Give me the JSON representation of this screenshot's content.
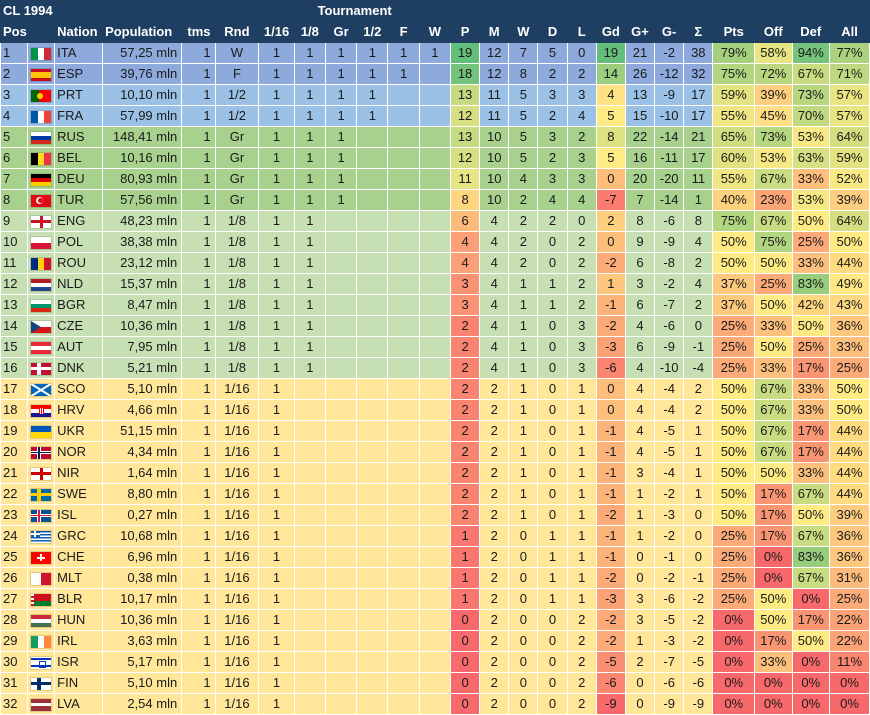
{
  "title": "CL 1994",
  "group_header": "Tournament",
  "columns": [
    "Pos",
    "",
    "Nation",
    "Population",
    "tms",
    "Rnd",
    "1/16",
    "1/8",
    "Gr",
    "1/2",
    "F",
    "W",
    "P",
    "M",
    "W",
    "D",
    "L",
    "Gd",
    "G+",
    "G-",
    "Σ",
    "Pts",
    "Off",
    "Def",
    "All"
  ],
  "row_colors": {
    "W": "#8ea9db",
    "F": "#8ea9db",
    "1/2": "#9bc2e6",
    "Gr": "#a9d18e",
    "1/8": "#c6e0b4",
    "1/16": "#ffe699"
  },
  "rows": [
    {
      "pos": "1",
      "nation": "ITA",
      "flag": "italy-flag",
      "population": "57,25 mln",
      "tms": "1",
      "rnd": "W",
      "r16": "1",
      "r8": "1",
      "gr": "1",
      "sf": "1",
      "f": "1",
      "w": "1",
      "p": "19",
      "m": "12",
      "win": "7",
      "d": "5",
      "l": "0",
      "gd": "19",
      "gp": "21",
      "gm": "-2",
      "sum": "38",
      "pts": "79%",
      "off": "58%",
      "def": "94%",
      "all": "77%"
    },
    {
      "pos": "2",
      "nation": "ESP",
      "flag": "spain-flag",
      "population": "39,76 mln",
      "tms": "1",
      "rnd": "F",
      "r16": "1",
      "r8": "1",
      "gr": "1",
      "sf": "1",
      "f": "1",
      "w": "",
      "p": "18",
      "m": "12",
      "win": "8",
      "d": "2",
      "l": "2",
      "gd": "14",
      "gp": "26",
      "gm": "-12",
      "sum": "32",
      "pts": "75%",
      "off": "72%",
      "def": "67%",
      "all": "71%"
    },
    {
      "pos": "3",
      "nation": "PRT",
      "flag": "portugal-flag",
      "population": "10,10 mln",
      "tms": "1",
      "rnd": "1/2",
      "r16": "1",
      "r8": "1",
      "gr": "1",
      "sf": "1",
      "f": "",
      "w": "",
      "p": "13",
      "m": "11",
      "win": "5",
      "d": "3",
      "l": "3",
      "gd": "4",
      "gp": "13",
      "gm": "-9",
      "sum": "17",
      "pts": "59%",
      "off": "39%",
      "def": "73%",
      "all": "57%"
    },
    {
      "pos": "4",
      "nation": "FRA",
      "flag": "france-flag",
      "population": "57,99 mln",
      "tms": "1",
      "rnd": "1/2",
      "r16": "1",
      "r8": "1",
      "gr": "1",
      "sf": "1",
      "f": "",
      "w": "",
      "p": "12",
      "m": "11",
      "win": "5",
      "d": "2",
      "l": "4",
      "gd": "5",
      "gp": "15",
      "gm": "-10",
      "sum": "17",
      "pts": "55%",
      "off": "45%",
      "def": "70%",
      "all": "57%"
    },
    {
      "pos": "5",
      "nation": "RUS",
      "flag": "russia-flag",
      "population": "148,41 mln",
      "tms": "1",
      "rnd": "Gr",
      "r16": "1",
      "r8": "1",
      "gr": "1",
      "sf": "",
      "f": "",
      "w": "",
      "p": "13",
      "m": "10",
      "win": "5",
      "d": "3",
      "l": "2",
      "gd": "8",
      "gp": "22",
      "gm": "-14",
      "sum": "21",
      "pts": "65%",
      "off": "73%",
      "def": "53%",
      "all": "64%"
    },
    {
      "pos": "6",
      "nation": "BEL",
      "flag": "belgium-flag",
      "population": "10,16 mln",
      "tms": "1",
      "rnd": "Gr",
      "r16": "1",
      "r8": "1",
      "gr": "1",
      "sf": "",
      "f": "",
      "w": "",
      "p": "12",
      "m": "10",
      "win": "5",
      "d": "2",
      "l": "3",
      "gd": "5",
      "gp": "16",
      "gm": "-11",
      "sum": "17",
      "pts": "60%",
      "off": "53%",
      "def": "63%",
      "all": "59%"
    },
    {
      "pos": "7",
      "nation": "DEU",
      "flag": "germany-flag",
      "population": "80,93 mln",
      "tms": "1",
      "rnd": "Gr",
      "r16": "1",
      "r8": "1",
      "gr": "1",
      "sf": "",
      "f": "",
      "w": "",
      "p": "11",
      "m": "10",
      "win": "4",
      "d": "3",
      "l": "3",
      "gd": "0",
      "gp": "20",
      "gm": "-20",
      "sum": "11",
      "pts": "55%",
      "off": "67%",
      "def": "33%",
      "all": "52%"
    },
    {
      "pos": "8",
      "nation": "TUR",
      "flag": "turkey-flag",
      "population": "57,56 mln",
      "tms": "1",
      "rnd": "Gr",
      "r16": "1",
      "r8": "1",
      "gr": "1",
      "sf": "",
      "f": "",
      "w": "",
      "p": "8",
      "m": "10",
      "win": "2",
      "d": "4",
      "l": "4",
      "gd": "-7",
      "gp": "7",
      "gm": "-14",
      "sum": "1",
      "pts": "40%",
      "off": "23%",
      "def": "53%",
      "all": "39%"
    },
    {
      "pos": "9",
      "nation": "ENG",
      "flag": "england-flag",
      "population": "48,23 mln",
      "tms": "1",
      "rnd": "1/8",
      "r16": "1",
      "r8": "1",
      "gr": "",
      "sf": "",
      "f": "",
      "w": "",
      "p": "6",
      "m": "4",
      "win": "2",
      "d": "2",
      "l": "0",
      "gd": "2",
      "gp": "8",
      "gm": "-6",
      "sum": "8",
      "pts": "75%",
      "off": "67%",
      "def": "50%",
      "all": "64%"
    },
    {
      "pos": "10",
      "nation": "POL",
      "flag": "poland-flag",
      "population": "38,38 mln",
      "tms": "1",
      "rnd": "1/8",
      "r16": "1",
      "r8": "1",
      "gr": "",
      "sf": "",
      "f": "",
      "w": "",
      "p": "4",
      "m": "4",
      "win": "2",
      "d": "0",
      "l": "2",
      "gd": "0",
      "gp": "9",
      "gm": "-9",
      "sum": "4",
      "pts": "50%",
      "off": "75%",
      "def": "25%",
      "all": "50%"
    },
    {
      "pos": "11",
      "nation": "ROU",
      "flag": "romania-flag",
      "population": "23,12 mln",
      "tms": "1",
      "rnd": "1/8",
      "r16": "1",
      "r8": "1",
      "gr": "",
      "sf": "",
      "f": "",
      "w": "",
      "p": "4",
      "m": "4",
      "win": "2",
      "d": "0",
      "l": "2",
      "gd": "-2",
      "gp": "6",
      "gm": "-8",
      "sum": "2",
      "pts": "50%",
      "off": "50%",
      "def": "33%",
      "all": "44%"
    },
    {
      "pos": "12",
      "nation": "NLD",
      "flag": "netherlands-flag",
      "population": "15,37 mln",
      "tms": "1",
      "rnd": "1/8",
      "r16": "1",
      "r8": "1",
      "gr": "",
      "sf": "",
      "f": "",
      "w": "",
      "p": "3",
      "m": "4",
      "win": "1",
      "d": "1",
      "l": "2",
      "gd": "1",
      "gp": "3",
      "gm": "-2",
      "sum": "4",
      "pts": "37%",
      "off": "25%",
      "def": "83%",
      "all": "49%"
    },
    {
      "pos": "13",
      "nation": "BGR",
      "flag": "bulgaria-flag",
      "population": "8,47 mln",
      "tms": "1",
      "rnd": "1/8",
      "r16": "1",
      "r8": "1",
      "gr": "",
      "sf": "",
      "f": "",
      "w": "",
      "p": "3",
      "m": "4",
      "win": "1",
      "d": "1",
      "l": "2",
      "gd": "-1",
      "gp": "6",
      "gm": "-7",
      "sum": "2",
      "pts": "37%",
      "off": "50%",
      "def": "42%",
      "all": "43%"
    },
    {
      "pos": "14",
      "nation": "CZE",
      "flag": "czech-flag",
      "population": "10,36 mln",
      "tms": "1",
      "rnd": "1/8",
      "r16": "1",
      "r8": "1",
      "gr": "",
      "sf": "",
      "f": "",
      "w": "",
      "p": "2",
      "m": "4",
      "win": "1",
      "d": "0",
      "l": "3",
      "gd": "-2",
      "gp": "4",
      "gm": "-6",
      "sum": "0",
      "pts": "25%",
      "off": "33%",
      "def": "50%",
      "all": "36%"
    },
    {
      "pos": "15",
      "nation": "AUT",
      "flag": "austria-flag",
      "population": "7,95 mln",
      "tms": "1",
      "rnd": "1/8",
      "r16": "1",
      "r8": "1",
      "gr": "",
      "sf": "",
      "f": "",
      "w": "",
      "p": "2",
      "m": "4",
      "win": "1",
      "d": "0",
      "l": "3",
      "gd": "-3",
      "gp": "6",
      "gm": "-9",
      "sum": "-1",
      "pts": "25%",
      "off": "50%",
      "def": "25%",
      "all": "33%"
    },
    {
      "pos": "16",
      "nation": "DNK",
      "flag": "denmark-flag",
      "population": "5,21 mln",
      "tms": "1",
      "rnd": "1/8",
      "r16": "1",
      "r8": "1",
      "gr": "",
      "sf": "",
      "f": "",
      "w": "",
      "p": "2",
      "m": "4",
      "win": "1",
      "d": "0",
      "l": "3",
      "gd": "-6",
      "gp": "4",
      "gm": "-10",
      "sum": "-4",
      "pts": "25%",
      "off": "33%",
      "def": "17%",
      "all": "25%"
    },
    {
      "pos": "17",
      "nation": "SCO",
      "flag": "scotland-flag",
      "population": "5,10 mln",
      "tms": "1",
      "rnd": "1/16",
      "r16": "1",
      "r8": "",
      "gr": "",
      "sf": "",
      "f": "",
      "w": "",
      "p": "2",
      "m": "2",
      "win": "1",
      "d": "0",
      "l": "1",
      "gd": "0",
      "gp": "4",
      "gm": "-4",
      "sum": "2",
      "pts": "50%",
      "off": "67%",
      "def": "33%",
      "all": "50%"
    },
    {
      "pos": "18",
      "nation": "HRV",
      "flag": "croatia-flag",
      "population": "4,66 mln",
      "tms": "1",
      "rnd": "1/16",
      "r16": "1",
      "r8": "",
      "gr": "",
      "sf": "",
      "f": "",
      "w": "",
      "p": "2",
      "m": "2",
      "win": "1",
      "d": "0",
      "l": "1",
      "gd": "0",
      "gp": "4",
      "gm": "-4",
      "sum": "2",
      "pts": "50%",
      "off": "67%",
      "def": "33%",
      "all": "50%"
    },
    {
      "pos": "19",
      "nation": "UKR",
      "flag": "ukraine-flag",
      "population": "51,15 mln",
      "tms": "1",
      "rnd": "1/16",
      "r16": "1",
      "r8": "",
      "gr": "",
      "sf": "",
      "f": "",
      "w": "",
      "p": "2",
      "m": "2",
      "win": "1",
      "d": "0",
      "l": "1",
      "gd": "-1",
      "gp": "4",
      "gm": "-5",
      "sum": "1",
      "pts": "50%",
      "off": "67%",
      "def": "17%",
      "all": "44%"
    },
    {
      "pos": "20",
      "nation": "NOR",
      "flag": "norway-flag",
      "population": "4,34 mln",
      "tms": "1",
      "rnd": "1/16",
      "r16": "1",
      "r8": "",
      "gr": "",
      "sf": "",
      "f": "",
      "w": "",
      "p": "2",
      "m": "2",
      "win": "1",
      "d": "0",
      "l": "1",
      "gd": "-1",
      "gp": "4",
      "gm": "-5",
      "sum": "1",
      "pts": "50%",
      "off": "67%",
      "def": "17%",
      "all": "44%"
    },
    {
      "pos": "21",
      "nation": "NIR",
      "flag": "northern-ireland-flag",
      "population": "1,64 mln",
      "tms": "1",
      "rnd": "1/16",
      "r16": "1",
      "r8": "",
      "gr": "",
      "sf": "",
      "f": "",
      "w": "",
      "p": "2",
      "m": "2",
      "win": "1",
      "d": "0",
      "l": "1",
      "gd": "-1",
      "gp": "3",
      "gm": "-4",
      "sum": "1",
      "pts": "50%",
      "off": "50%",
      "def": "33%",
      "all": "44%"
    },
    {
      "pos": "22",
      "nation": "SWE",
      "flag": "sweden-flag",
      "population": "8,80 mln",
      "tms": "1",
      "rnd": "1/16",
      "r16": "1",
      "r8": "",
      "gr": "",
      "sf": "",
      "f": "",
      "w": "",
      "p": "2",
      "m": "2",
      "win": "1",
      "d": "0",
      "l": "1",
      "gd": "-1",
      "gp": "1",
      "gm": "-2",
      "sum": "1",
      "pts": "50%",
      "off": "17%",
      "def": "67%",
      "all": "44%"
    },
    {
      "pos": "23",
      "nation": "ISL",
      "flag": "iceland-flag",
      "population": "0,27 mln",
      "tms": "1",
      "rnd": "1/16",
      "r16": "1",
      "r8": "",
      "gr": "",
      "sf": "",
      "f": "",
      "w": "",
      "p": "2",
      "m": "2",
      "win": "1",
      "d": "0",
      "l": "1",
      "gd": "-2",
      "gp": "1",
      "gm": "-3",
      "sum": "0",
      "pts": "50%",
      "off": "17%",
      "def": "50%",
      "all": "39%"
    },
    {
      "pos": "24",
      "nation": "GRC",
      "flag": "greece-flag",
      "population": "10,68 mln",
      "tms": "1",
      "rnd": "1/16",
      "r16": "1",
      "r8": "",
      "gr": "",
      "sf": "",
      "f": "",
      "w": "",
      "p": "1",
      "m": "2",
      "win": "0",
      "d": "1",
      "l": "1",
      "gd": "-1",
      "gp": "1",
      "gm": "-2",
      "sum": "0",
      "pts": "25%",
      "off": "17%",
      "def": "67%",
      "all": "36%"
    },
    {
      "pos": "25",
      "nation": "CHE",
      "flag": "switzerland-flag",
      "population": "6,96 mln",
      "tms": "1",
      "rnd": "1/16",
      "r16": "1",
      "r8": "",
      "gr": "",
      "sf": "",
      "f": "",
      "w": "",
      "p": "1",
      "m": "2",
      "win": "0",
      "d": "1",
      "l": "1",
      "gd": "-1",
      "gp": "0",
      "gm": "-1",
      "sum": "0",
      "pts": "25%",
      "off": "0%",
      "def": "83%",
      "all": "36%"
    },
    {
      "pos": "26",
      "nation": "MLT",
      "flag": "malta-flag",
      "population": "0,38 mln",
      "tms": "1",
      "rnd": "1/16",
      "r16": "1",
      "r8": "",
      "gr": "",
      "sf": "",
      "f": "",
      "w": "",
      "p": "1",
      "m": "2",
      "win": "0",
      "d": "1",
      "l": "1",
      "gd": "-2",
      "gp": "0",
      "gm": "-2",
      "sum": "-1",
      "pts": "25%",
      "off": "0%",
      "def": "67%",
      "all": "31%"
    },
    {
      "pos": "27",
      "nation": "BLR",
      "flag": "belarus-flag",
      "population": "10,17 mln",
      "tms": "1",
      "rnd": "1/16",
      "r16": "1",
      "r8": "",
      "gr": "",
      "sf": "",
      "f": "",
      "w": "",
      "p": "1",
      "m": "2",
      "win": "0",
      "d": "1",
      "l": "1",
      "gd": "-3",
      "gp": "3",
      "gm": "-6",
      "sum": "-2",
      "pts": "25%",
      "off": "50%",
      "def": "0%",
      "all": "25%"
    },
    {
      "pos": "28",
      "nation": "HUN",
      "flag": "hungary-flag",
      "population": "10,36 mln",
      "tms": "1",
      "rnd": "1/16",
      "r16": "1",
      "r8": "",
      "gr": "",
      "sf": "",
      "f": "",
      "w": "",
      "p": "0",
      "m": "2",
      "win": "0",
      "d": "0",
      "l": "2",
      "gd": "-2",
      "gp": "3",
      "gm": "-5",
      "sum": "-2",
      "pts": "0%",
      "off": "50%",
      "def": "17%",
      "all": "22%"
    },
    {
      "pos": "29",
      "nation": "IRL",
      "flag": "ireland-flag",
      "population": "3,63 mln",
      "tms": "1",
      "rnd": "1/16",
      "r16": "1",
      "r8": "",
      "gr": "",
      "sf": "",
      "f": "",
      "w": "",
      "p": "0",
      "m": "2",
      "win": "0",
      "d": "0",
      "l": "2",
      "gd": "-2",
      "gp": "1",
      "gm": "-3",
      "sum": "-2",
      "pts": "0%",
      "off": "17%",
      "def": "50%",
      "all": "22%"
    },
    {
      "pos": "30",
      "nation": "ISR",
      "flag": "israel-flag",
      "population": "5,17 mln",
      "tms": "1",
      "rnd": "1/16",
      "r16": "1",
      "r8": "",
      "gr": "",
      "sf": "",
      "f": "",
      "w": "",
      "p": "0",
      "m": "2",
      "win": "0",
      "d": "0",
      "l": "2",
      "gd": "-5",
      "gp": "2",
      "gm": "-7",
      "sum": "-5",
      "pts": "0%",
      "off": "33%",
      "def": "0%",
      "all": "11%"
    },
    {
      "pos": "31",
      "nation": "FIN",
      "flag": "finland-flag",
      "population": "5,10 mln",
      "tms": "1",
      "rnd": "1/16",
      "r16": "1",
      "r8": "",
      "gr": "",
      "sf": "",
      "f": "",
      "w": "",
      "p": "0",
      "m": "2",
      "win": "0",
      "d": "0",
      "l": "2",
      "gd": "-6",
      "gp": "0",
      "gm": "-6",
      "sum": "-6",
      "pts": "0%",
      "off": "0%",
      "def": "0%",
      "all": "0%"
    },
    {
      "pos": "32",
      "nation": "LVA",
      "flag": "latvia-flag",
      "population": "2,54 mln",
      "tms": "1",
      "rnd": "1/16",
      "r16": "1",
      "r8": "",
      "gr": "",
      "sf": "",
      "f": "",
      "w": "",
      "p": "0",
      "m": "2",
      "win": "0",
      "d": "0",
      "l": "2",
      "gd": "-9",
      "gp": "0",
      "gm": "-9",
      "sum": "-9",
      "pts": "0%",
      "off": "0%",
      "def": "0%",
      "all": "0%"
    }
  ]
}
